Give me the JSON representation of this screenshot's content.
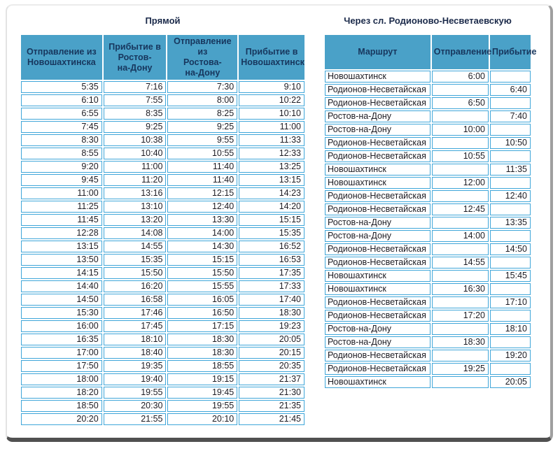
{
  "direct": {
    "title": "Прямой",
    "columns": [
      "Отправление из\nНовошахтинска",
      "Прибытие в\nРостов-\nна-Дону",
      "Отправление из\nРостова-\nна-Дону",
      "Прибытие в\nНовошахтинск"
    ],
    "rows": [
      [
        "5:35",
        "7:16",
        "7:30",
        "9:10"
      ],
      [
        "6:10",
        "7:55",
        "8:00",
        "10:22"
      ],
      [
        "6:55",
        "8:35",
        "8:25",
        "10:10"
      ],
      [
        "7:45",
        "9:25",
        "9:25",
        "11:00"
      ],
      [
        "8:30",
        "10:38",
        "9:55",
        "11:33"
      ],
      [
        "8:55",
        "10:40",
        "10:55",
        "12:33"
      ],
      [
        "9:20",
        "11:00",
        "11:40",
        "13:25"
      ],
      [
        "9:45",
        "11:20",
        "11:40",
        "13:15"
      ],
      [
        "11:00",
        "13:16",
        "12:15",
        "14:23"
      ],
      [
        "11:25",
        "13:10",
        "12:40",
        "14:20"
      ],
      [
        "11:45",
        "13:20",
        "13:30",
        "15:15"
      ],
      [
        "12:28",
        "14:08",
        "14:00",
        "15:35"
      ],
      [
        "13:15",
        "14:55",
        "14:30",
        "16:52"
      ],
      [
        "13:50",
        "15:35",
        "15:15",
        "16:53"
      ],
      [
        "14:15",
        "15:50",
        "15:50",
        "17:35"
      ],
      [
        "14:40",
        "16:20",
        "15:55",
        "17:33"
      ],
      [
        "14:50",
        "16:58",
        "16:05",
        "17:40"
      ],
      [
        "15:30",
        "17:46",
        "16:50",
        "18:30"
      ],
      [
        "16:00",
        "17:45",
        "17:15",
        "19:23"
      ],
      [
        "16:35",
        "18:10",
        "18:30",
        "20:05"
      ],
      [
        "17:00",
        "18:40",
        "18:30",
        "20:15"
      ],
      [
        "17:50",
        "19:35",
        "18:55",
        "20:35"
      ],
      [
        "18:00",
        "19:40",
        "19:15",
        "21:37"
      ],
      [
        "18:20",
        "19:55",
        "19:45",
        "21:30"
      ],
      [
        "18:50",
        "20:30",
        "19:55",
        "21:35"
      ],
      [
        "20:20",
        "21:55",
        "20:10",
        "21:45"
      ]
    ]
  },
  "via": {
    "title": "Через сл. Родионово-Несветаевскую",
    "columns": [
      "Маршрут",
      "Отправление",
      "Прибытие"
    ],
    "rows": [
      [
        "Новошахтинск",
        "6:00",
        ""
      ],
      [
        "Родионов-Несветайская",
        "",
        "6:40"
      ],
      [
        "Родионов-Несветайская",
        "6:50",
        ""
      ],
      [
        "Ростов-на-Дону",
        "",
        "7:40"
      ],
      [
        "Ростов-на-Дону",
        "10:00",
        ""
      ],
      [
        "Родионов-Несветайская",
        "",
        "10:50"
      ],
      [
        "Родионов-Несветайская",
        "10:55",
        ""
      ],
      [
        "Новошахтинск",
        "",
        "11:35"
      ],
      [
        "Новошахтинск",
        "12:00",
        ""
      ],
      [
        "Родионов-Несветайская",
        "",
        "12:40"
      ],
      [
        "Родионов-Несветайская",
        "12:45",
        ""
      ],
      [
        "Ростов-на-Дону",
        "",
        "13:35"
      ],
      [
        "Ростов-на-Дону",
        "14:00",
        ""
      ],
      [
        "Родионов-Несветайская",
        "",
        "14:50"
      ],
      [
        "Родионов-Несветайская",
        "14:55",
        ""
      ],
      [
        "Новошахтинск",
        "",
        "15:45"
      ],
      [
        "Новошахтинск",
        "16:30",
        ""
      ],
      [
        "Родионов-Несветайская",
        "",
        "17:10"
      ],
      [
        "Родионов-Несветайская",
        "17:20",
        ""
      ],
      [
        "Ростов-на-Дону",
        "",
        "18:10"
      ],
      [
        "Ростов-на-Дону",
        "18:30",
        ""
      ],
      [
        "Родионов-Несветайская",
        "",
        "19:20"
      ],
      [
        "Родионов-Несветайская",
        "19:25",
        ""
      ],
      [
        "Новошахтинск",
        "",
        "20:05"
      ]
    ]
  },
  "colors": {
    "header_bg": "#4aa1c8",
    "header_text": "#17365d",
    "cell_border": "#3fa6d9",
    "data_text": "#1c1c24",
    "title_text": "#1b2a4a"
  }
}
